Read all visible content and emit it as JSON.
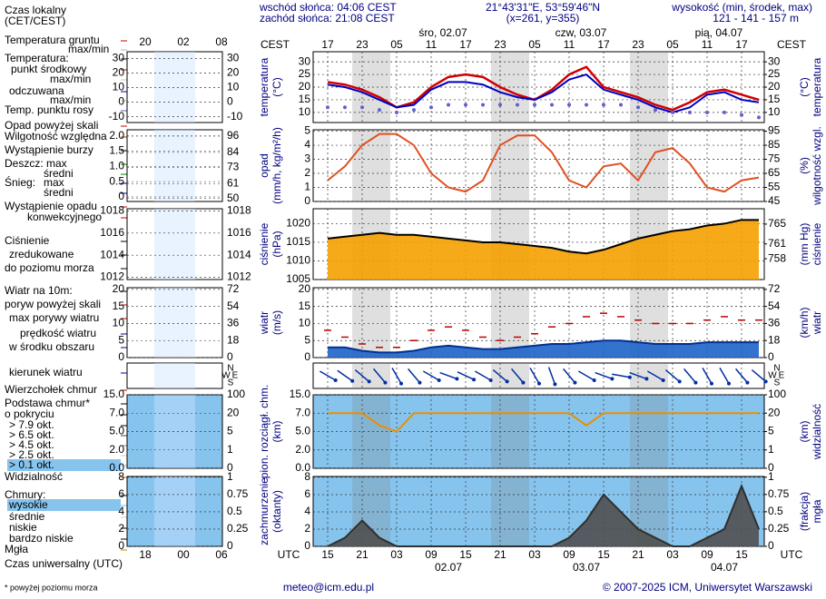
{
  "header": {
    "local_time": "Czas lokalny",
    "local_zone": "(CET/CEST)",
    "sunrise": "wschód słońca: 04:06 CEST",
    "sunset": "zachód słońca: 21:08 CEST",
    "coords": "21°43'31\"E, 53°59'46\"N",
    "grid": "(x=261, y=355)",
    "elev_label": "wysokość (min, środek, max)",
    "elev": "121 - 141 - 157 m"
  },
  "top_axis": {
    "zone": "CEST",
    "hours": [
      "17",
      "23",
      "05",
      "11",
      "17",
      "23",
      "05",
      "11",
      "17",
      "23",
      "05",
      "11",
      "17"
    ],
    "days": [
      "śro, 02.07",
      "czw, 03.07",
      "pią, 04.07"
    ]
  },
  "bottom_axis": {
    "zone": "UTC",
    "hours": [
      "15",
      "21",
      "03",
      "09",
      "15",
      "21",
      "03",
      "09",
      "15",
      "21",
      "03",
      "09",
      "15"
    ],
    "dates": [
      "02.07",
      "03.07",
      "04.07"
    ]
  },
  "mini_axis": {
    "top": [
      "20",
      "02",
      "08"
    ],
    "bottom": [
      "18",
      "00",
      "06"
    ]
  },
  "compass": [
    "N",
    "W",
    "E",
    "S"
  ],
  "legend": [
    "Temperatura gruntu",
    "max/min",
    "Temperatura:",
    "punkt środkowy",
    "max/min",
    "odczuwana",
    "max/min",
    "Temp. punktu rosy",
    "Opad powyżej skali",
    "Wilgotność względna",
    "Wystąpienie burzy",
    "Deszcz: max",
    "średni",
    "Śnieg:",
    "max",
    "średni",
    "Wystąpienie opadu",
    "konwekcyjnego",
    "Ciśnienie",
    "zredukowane",
    "do poziomu morza",
    "Wiatr na 10m:",
    "poryw powyżej skali",
    "max porywy wiatru",
    "prędkość wiatru",
    "w środku obszaru",
    "kierunek wiatru",
    "Wierzchołek chmur",
    "Podstawa chmur*",
    "o pokryciu",
    "> 7.9 okt.",
    "> 6.5 okt.",
    "> 4.5 okt.",
    "> 2.5 okt.",
    "> 0.1 okt.",
    "Widzialność",
    "Chmury:",
    "wysokie",
    "średnie",
    "niskie",
    "bardzo niskie",
    "Mgła"
  ],
  "panels": [
    {
      "label": [
        "temperatura",
        "(°C)"
      ],
      "label2": [
        "(°C)",
        "temperatura"
      ],
      "background": "#ffffff",
      "ylim": [
        6,
        34
      ],
      "yticks": [
        10,
        15,
        20,
        25,
        30
      ],
      "y2lim": [
        6,
        34
      ],
      "y2ticks": [
        10,
        15,
        20,
        25,
        30
      ],
      "mini": {
        "ylim": [
          -14,
          34.7
        ],
        "yticks": [
          30,
          20,
          10,
          0,
          -10
        ]
      },
      "series": [
        {
          "style": "line",
          "color": "#d00000",
          "width": 2.5,
          "values": [
            22,
            21,
            19,
            16,
            12,
            14,
            20,
            24,
            25,
            24,
            20,
            17,
            15,
            19,
            25,
            28,
            20,
            18,
            16,
            13,
            11,
            14,
            18,
            19,
            17,
            15
          ]
        },
        {
          "style": "line",
          "color": "#0000c0",
          "width": 2,
          "values": [
            21,
            20,
            18,
            15,
            12,
            13,
            19,
            22,
            22,
            21,
            18,
            16,
            15,
            18,
            23,
            25,
            19,
            17,
            15,
            12,
            10,
            12,
            17,
            18,
            15,
            14
          ]
        },
        {
          "style": "dots",
          "color": "#6060d0",
          "values": [
            12,
            12,
            12,
            11,
            10,
            11,
            12,
            13,
            13,
            13,
            13,
            13,
            13,
            13,
            13,
            13,
            13,
            13,
            12,
            11,
            10,
            10,
            10,
            10,
            9,
            8
          ]
        }
      ]
    },
    {
      "label": [
        "opad",
        "(mm/h, kg/m²/h)"
      ],
      "label2": [
        "(%)",
        "wilgotność wzgl."
      ],
      "background": "#ffffff",
      "ylim": [
        0,
        5.1
      ],
      "yticks": [
        0,
        1,
        2,
        3,
        4,
        5
      ],
      "y2lim": [
        45,
        96
      ],
      "y2ticks": [
        45,
        55,
        65,
        75,
        85,
        95
      ],
      "y2color": "#c04000",
      "mini": {
        "ylim": [
          -0.15,
          2.2
        ],
        "yticks": [
          0,
          0.5,
          {
            "value": 1,
            "label": "1.0"
          },
          {
            "value": 1.5,
            "label": "1.5"
          },
          {
            "value": 2,
            "label": "2.0"
          }
        ],
        "y2lim": [
          47.8,
          100.7
        ],
        "y2ticks": [
          50,
          61,
          73,
          84,
          96
        ]
      },
      "series": [
        {
          "style": "line",
          "axis": "y2",
          "color": "#e05020",
          "width": 2,
          "values": [
            60,
            70,
            85,
            93,
            93,
            85,
            65,
            55,
            52,
            60,
            85,
            92,
            92,
            80,
            60,
            55,
            70,
            72,
            60,
            80,
            83,
            72,
            55,
            52,
            60,
            62
          ]
        }
      ]
    },
    {
      "label": [
        "ciśnienie",
        "(hPa)"
      ],
      "label2": [
        "(mm Hg)",
        "ciśnienie"
      ],
      "background": "#ffffff",
      "ylim": [
        1005,
        1024
      ],
      "yticks": [
        1005,
        1010,
        1015,
        1020
      ],
      "y2lim": [
        753.8,
        768.1
      ],
      "y2ticks": [
        758,
        761,
        765
      ],
      "mini": {
        "ylim": [
          1011.8,
          1018.2
        ],
        "yticks": [
          1012,
          1014,
          1016,
          1018
        ]
      },
      "series": [
        {
          "style": "area",
          "color": "#f5a000",
          "stroke": "#000000",
          "values": [
            1016,
            1016.5,
            1017,
            1017.5,
            1017,
            1017,
            1016.5,
            1016,
            1015.5,
            1015,
            1015,
            1014.5,
            1014,
            1013.5,
            1012.5,
            1012,
            1013,
            1014.5,
            1016,
            1017,
            1018,
            1018.5,
            1019.5,
            1020,
            1021,
            1021
          ]
        }
      ]
    },
    {
      "label": [
        "wiatr",
        "(m/s)"
      ],
      "label2": [
        "(km/h)",
        "wiatr"
      ],
      "background": "#ffffff",
      "ylim": [
        0,
        20.5
      ],
      "yticks": [
        0,
        5,
        10,
        15,
        20
      ],
      "y2lim": [
        0,
        73.8
      ],
      "y2ticks": [
        0,
        18,
        36,
        54,
        72
      ],
      "series": [
        {
          "style": "area",
          "color": "#1e64c8",
          "stroke": "#003090",
          "values": [
            3,
            3,
            2,
            1.5,
            1.5,
            2,
            3,
            3.5,
            3,
            2.5,
            2.5,
            3,
            3.5,
            4,
            4,
            4.5,
            5,
            5,
            4.5,
            4,
            4,
            4,
            4.5,
            4.5,
            4.5,
            4.5
          ]
        },
        {
          "style": "dash",
          "color": "#c00000",
          "values": [
            8,
            6,
            4,
            3,
            3,
            5,
            8,
            9,
            8,
            6,
            5,
            6,
            7,
            9,
            10,
            12,
            13,
            12,
            11,
            10,
            10,
            10,
            11,
            12,
            11,
            11
          ]
        }
      ]
    },
    {
      "background": "#ffffff",
      "color": "#0030a0",
      "direction": [
        300,
        305,
        310,
        320,
        330,
        320,
        300,
        290,
        295,
        300,
        310,
        320,
        330,
        340,
        320,
        300,
        290,
        280,
        290,
        300,
        310,
        320,
        330,
        330,
        320,
        310
      ]
    },
    {
      "label": [
        "pion. rozciągł. chm.",
        "(km)"
      ],
      "label2": [
        "(km)",
        "widzialność"
      ],
      "background": "#86c4ee",
      "piecewise": true,
      "yticks": [
        {
          "value": 0,
          "label": "0.0"
        },
        {
          "value": 2,
          "label": "2.0"
        },
        {
          "value": 5,
          "label": "5.0"
        },
        {
          "value": 7,
          "label": "7.0"
        },
        {
          "value": 15,
          "label": "15.0"
        }
      ],
      "y2ticks": [
        0,
        1,
        5,
        20,
        100
      ],
      "y2color": "#c06000",
      "series": [
        {
          "style": "line",
          "axis": "y2",
          "color": "#e89000",
          "width": 2,
          "values": [
            20,
            20,
            20,
            10,
            5,
            20,
            20,
            20,
            20,
            20,
            20,
            20,
            20,
            20,
            20,
            10,
            20,
            20,
            20,
            20,
            20,
            20,
            20,
            20,
            20,
            20
          ]
        }
      ]
    },
    {
      "label": [
        "zachmurzenie",
        "(oktanty)"
      ],
      "label2": [
        "(frakcja)",
        "mgła"
      ],
      "background": "#86c4ee",
      "ylim": [
        0,
        8.1
      ],
      "yticks": [
        0,
        2,
        4,
        6,
        8
      ],
      "y2lim": [
        0,
        1.01
      ],
      "y2ticks": [
        0,
        0.25,
        0.5,
        0.75,
        1
      ],
      "y2color": "#c06000",
      "series": [
        {
          "style": "area",
          "color": "#505050",
          "stroke": "#303030",
          "values": [
            0,
            1,
            3,
            1,
            0,
            0,
            0,
            0,
            0,
            0,
            0,
            0,
            0,
            0,
            1,
            3,
            6,
            4,
            2,
            1,
            0,
            0,
            1,
            2,
            7,
            2
          ]
        }
      ]
    }
  ],
  "footer": {
    "utc": "Czas uniwersalny (UTC)",
    "note": "* powyżej poziomu morza",
    "email": "meteo@icm.edu.pl",
    "copyright": "© 2007-2025 ICM, Uniwersytet Warszawski"
  }
}
